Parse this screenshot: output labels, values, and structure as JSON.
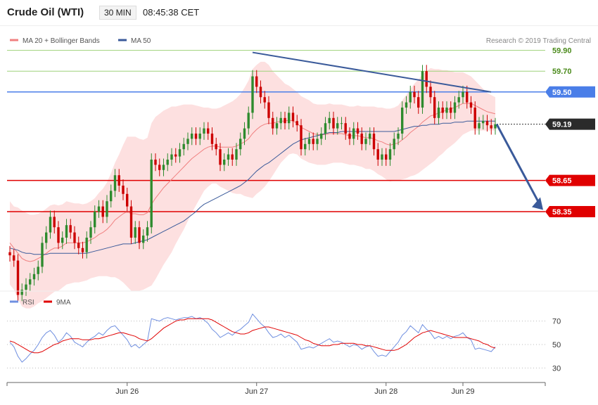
{
  "header": {
    "title": "Crude Oil (WTI)",
    "interval": "30 MIN",
    "time": "08:45:38 CET"
  },
  "credit": "Research © 2019 Trading Central",
  "colors": {
    "bollinger_fill": "#fde0e0",
    "ma20": "#f08080",
    "ma50": "#3a5a9a",
    "candle_up": "#2e8b2e",
    "candle_down": "#cc0000",
    "resistance_green": "#9ed27a",
    "pivot_blue": "#4a7ee8",
    "support_red": "#e00000",
    "trendline": "#3a5a9a",
    "rsi": "#6f8fe0",
    "rsi_ma": "#e00000"
  },
  "chart_data": [
    {
      "type": "candlestick",
      "legend": [
        {
          "name": "MA 20 + Bollinger Bands",
          "color": "#f08080"
        },
        {
          "name": "MA 50",
          "color": "#3a5a9a"
        }
      ],
      "ylim": [
        57.6,
        60.1
      ],
      "levels": [
        {
          "value": 59.9,
          "label": "59.90",
          "style": "green"
        },
        {
          "value": 59.7,
          "label": "59.70",
          "style": "green"
        },
        {
          "value": 59.5,
          "label": "59.50",
          "style": "blue"
        },
        {
          "value": 59.19,
          "label": "59.19",
          "style": "current"
        },
        {
          "value": 58.65,
          "label": "58.65",
          "style": "red"
        },
        {
          "value": 58.35,
          "label": "58.35",
          "style": "red"
        }
      ],
      "x_ticks": [
        "Jun 26",
        "Jun 27",
        "Jun 28",
        "Jun 29"
      ],
      "closes": [
        57.93,
        57.88,
        57.55,
        57.6,
        57.65,
        57.7,
        57.75,
        57.82,
        58.05,
        58.15,
        58.3,
        58.2,
        58.05,
        58.1,
        58.22,
        58.15,
        58.05,
        58.0,
        57.96,
        58.1,
        58.2,
        58.35,
        58.4,
        58.3,
        58.45,
        58.55,
        58.7,
        58.6,
        58.52,
        58.4,
        58.1,
        58.2,
        58.05,
        58.12,
        58.2,
        58.85,
        58.8,
        58.75,
        58.8,
        58.85,
        58.9,
        58.88,
        58.95,
        59.0,
        59.05,
        59.1,
        59.05,
        59.1,
        59.15,
        59.1,
        59.0,
        58.95,
        58.8,
        58.85,
        58.9,
        58.85,
        58.95,
        59.05,
        59.15,
        59.3,
        59.65,
        59.55,
        59.45,
        59.4,
        59.25,
        59.15,
        59.2,
        59.25,
        59.2,
        59.3,
        59.22,
        59.18,
        58.95,
        59.0,
        59.05,
        59.0,
        59.05,
        59.1,
        59.2,
        59.25,
        59.15,
        59.2,
        59.2,
        59.1,
        59.05,
        59.15,
        59.1,
        59.0,
        59.05,
        59.1,
        58.95,
        58.85,
        58.9,
        58.85,
        58.95,
        59.05,
        59.1,
        59.35,
        59.4,
        59.5,
        59.45,
        59.35,
        59.7,
        59.55,
        59.45,
        59.25,
        59.35,
        59.3,
        59.35,
        59.3,
        59.4,
        59.45,
        59.5,
        59.4,
        59.35,
        59.15,
        59.2,
        59.22,
        59.18,
        59.15,
        59.19
      ],
      "ma20": [
        58.05,
        58.0,
        57.95,
        57.9,
        57.88,
        57.87,
        57.88,
        57.9,
        57.92,
        57.95,
        57.98,
        58.0,
        58.0,
        58.02,
        58.05,
        58.05,
        58.05,
        58.05,
        58.05,
        58.06,
        58.08,
        58.1,
        58.13,
        58.15,
        58.18,
        58.22,
        58.27,
        58.3,
        58.33,
        58.35,
        58.33,
        58.33,
        58.32,
        58.32,
        58.34,
        58.42,
        58.48,
        58.53,
        58.58,
        58.62,
        58.66,
        58.7,
        58.74,
        58.78,
        58.82,
        58.86,
        58.89,
        58.92,
        58.95,
        58.97,
        58.98,
        58.98,
        58.97,
        58.97,
        58.97,
        58.97,
        58.98,
        59.0,
        59.02,
        59.05,
        59.1,
        59.14,
        59.17,
        59.19,
        59.2,
        59.2,
        59.21,
        59.22,
        59.22,
        59.23,
        59.22,
        59.2,
        59.16,
        59.14,
        59.12,
        59.1,
        59.09,
        59.09,
        59.09,
        59.1,
        59.1,
        59.1,
        59.1,
        59.09,
        59.08,
        59.08,
        59.08,
        59.07,
        59.06,
        59.06,
        59.05,
        59.03,
        59.02,
        59.0,
        58.99,
        59.0,
        59.01,
        59.04,
        59.07,
        59.11,
        59.14,
        59.17,
        59.21,
        59.24,
        59.27,
        59.28,
        59.3,
        59.31,
        59.33,
        59.34,
        59.35,
        59.37,
        59.39,
        59.39,
        59.39,
        59.37,
        59.35,
        59.33,
        59.31,
        59.3,
        59.29
      ],
      "ma50": [
        58.0,
        57.99,
        57.98,
        57.96,
        57.95,
        57.95,
        57.94,
        57.94,
        57.94,
        57.94,
        57.95,
        57.95,
        57.95,
        57.95,
        57.95,
        57.95,
        57.95,
        57.95,
        57.95,
        57.95,
        57.96,
        57.97,
        57.98,
        57.99,
        58.0,
        58.01,
        58.02,
        58.03,
        58.04,
        58.04,
        58.04,
        58.05,
        58.06,
        58.07,
        58.08,
        58.1,
        58.12,
        58.14,
        58.16,
        58.18,
        58.2,
        58.22,
        58.24,
        58.26,
        58.29,
        58.32,
        58.35,
        58.39,
        58.42,
        58.44,
        58.46,
        58.48,
        58.5,
        58.52,
        58.54,
        58.56,
        58.58,
        58.6,
        58.63,
        58.66,
        58.7,
        58.74,
        58.77,
        58.8,
        58.82,
        58.85,
        58.88,
        58.91,
        58.94,
        58.97,
        59.0,
        59.02,
        59.04,
        59.05,
        59.06,
        59.07,
        59.08,
        59.09,
        59.1,
        59.11,
        59.11,
        59.11,
        59.12,
        59.12,
        59.12,
        59.12,
        59.12,
        59.12,
        59.12,
        59.12,
        59.12,
        59.12,
        59.12,
        59.12,
        59.12,
        59.12,
        59.13,
        59.14,
        59.15,
        59.16,
        59.17,
        59.17,
        59.18,
        59.18,
        59.19,
        59.19,
        59.19,
        59.2,
        59.2,
        59.2,
        59.21,
        59.21,
        59.21,
        59.22,
        59.22,
        59.22,
        59.22,
        59.22,
        59.22,
        59.22,
        59.22
      ],
      "bollinger_width": [
        0.4,
        0.4,
        0.44,
        0.46,
        0.46,
        0.45,
        0.44,
        0.43,
        0.43,
        0.43,
        0.43,
        0.42,
        0.41,
        0.4,
        0.4,
        0.39,
        0.38,
        0.38,
        0.37,
        0.37,
        0.37,
        0.38,
        0.4,
        0.42,
        0.45,
        0.5,
        0.55,
        0.6,
        0.66,
        0.72,
        0.74,
        0.74,
        0.73,
        0.72,
        0.72,
        0.78,
        0.78,
        0.76,
        0.74,
        0.72,
        0.7,
        0.66,
        0.63,
        0.6,
        0.56,
        0.52,
        0.48,
        0.44,
        0.4,
        0.38,
        0.36,
        0.36,
        0.38,
        0.4,
        0.42,
        0.44,
        0.46,
        0.48,
        0.52,
        0.56,
        0.62,
        0.62,
        0.62,
        0.6,
        0.56,
        0.5,
        0.45,
        0.4,
        0.36,
        0.33,
        0.31,
        0.3,
        0.3,
        0.3,
        0.3,
        0.29,
        0.29,
        0.29,
        0.29,
        0.29,
        0.28,
        0.28,
        0.28,
        0.28,
        0.28,
        0.28,
        0.29,
        0.29,
        0.3,
        0.3,
        0.31,
        0.32,
        0.33,
        0.34,
        0.35,
        0.35,
        0.36,
        0.38,
        0.4,
        0.42,
        0.44,
        0.45,
        0.46,
        0.46,
        0.46,
        0.44,
        0.42,
        0.4,
        0.38,
        0.36,
        0.34,
        0.32,
        0.3,
        0.28,
        0.26,
        0.24,
        0.22,
        0.2,
        0.18,
        0.17,
        0.16
      ]
    },
    {
      "type": "line",
      "legend": [
        {
          "name": "RSI",
          "color": "#6f8fe0"
        },
        {
          "name": "9MA",
          "color": "#e00000"
        }
      ],
      "ylim": [
        20,
        80
      ],
      "y_ticks": [
        70,
        50,
        30
      ],
      "rsi": [
        52,
        48,
        40,
        35,
        38,
        42,
        45,
        50,
        56,
        60,
        62,
        58,
        52,
        55,
        60,
        57,
        52,
        50,
        48,
        52,
        55,
        57,
        60,
        58,
        62,
        65,
        66,
        62,
        58,
        54,
        48,
        50,
        47,
        50,
        53,
        72,
        71,
        70,
        72,
        73,
        72,
        71,
        72,
        73,
        73,
        74,
        72,
        73,
        71,
        68,
        63,
        60,
        56,
        58,
        60,
        58,
        61,
        63,
        66,
        69,
        76,
        72,
        68,
        65,
        60,
        56,
        57,
        59,
        56,
        58,
        55,
        52,
        46,
        47,
        48,
        47,
        49,
        51,
        53,
        55,
        52,
        53,
        52,
        50,
        48,
        50,
        49,
        46,
        48,
        49,
        44,
        40,
        41,
        40,
        44,
        48,
        52,
        58,
        61,
        66,
        63,
        60,
        67,
        63,
        60,
        55,
        57,
        55,
        57,
        55,
        57,
        58,
        60,
        56,
        54,
        46,
        47,
        46,
        45,
        44,
        48
      ],
      "ma9": [
        53,
        52,
        50,
        48,
        46,
        44,
        43,
        43,
        44,
        46,
        48,
        50,
        51,
        53,
        54,
        55,
        55,
        55,
        54,
        54,
        54,
        55,
        55,
        56,
        57,
        58,
        59,
        60,
        60,
        59,
        58,
        57,
        55,
        54,
        53,
        55,
        58,
        61,
        64,
        66,
        68,
        70,
        71,
        71,
        72,
        72,
        72,
        72,
        72,
        72,
        71,
        69,
        67,
        65,
        63,
        61,
        60,
        59,
        59,
        60,
        62,
        63,
        64,
        65,
        65,
        64,
        63,
        62,
        61,
        60,
        59,
        58,
        56,
        54,
        53,
        51,
        50,
        49,
        49,
        49,
        50,
        50,
        51,
        51,
        51,
        51,
        50,
        50,
        49,
        49,
        48,
        47,
        46,
        45,
        45,
        45,
        46,
        48,
        50,
        53,
        56,
        58,
        60,
        61,
        62,
        61,
        60,
        59,
        58,
        57,
        56,
        56,
        56,
        56,
        55,
        54,
        53,
        51,
        50,
        48,
        47
      ]
    }
  ]
}
